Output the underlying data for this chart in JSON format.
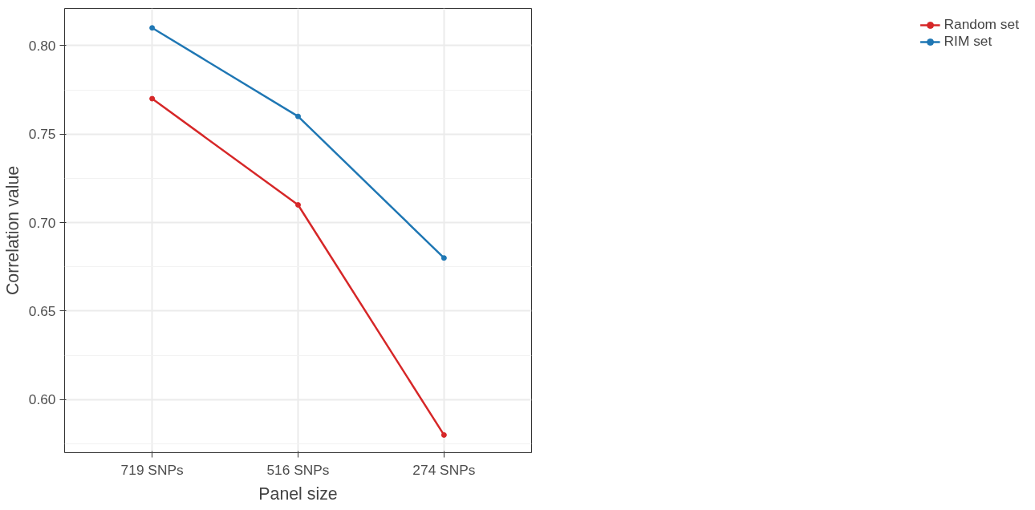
{
  "chart_data": {
    "type": "line",
    "xlabel": "Panel size",
    "ylabel": "Correlation value",
    "categories": [
      "719 SNPs",
      "516 SNPs",
      "274 SNPs"
    ],
    "series": [
      {
        "name": "Random set",
        "color": "#d62728",
        "values": [
          0.77,
          0.71,
          0.58
        ]
      },
      {
        "name": "RIM set",
        "color": "#1f77b4",
        "values": [
          0.81,
          0.76,
          0.68
        ]
      }
    ],
    "ylim": [
      0.57,
      0.821
    ],
    "yticks": [
      {
        "value": 0.6,
        "label": "0.60"
      },
      {
        "value": 0.65,
        "label": "0.65"
      },
      {
        "value": 0.7,
        "label": "0.70"
      },
      {
        "value": 0.75,
        "label": "0.75"
      },
      {
        "value": 0.8,
        "label": "0.80"
      }
    ],
    "grid": true,
    "legend": "right",
    "marker": "circle",
    "line_style": "solid"
  }
}
